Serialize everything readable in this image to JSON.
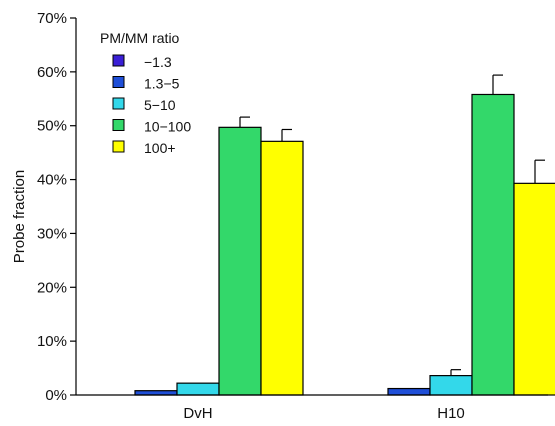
{
  "chart_data": {
    "type": "bar",
    "ylabel": "Probe fraction",
    "ylim": [
      0,
      70
    ],
    "yticks": [
      0,
      10,
      20,
      30,
      40,
      50,
      60,
      70
    ],
    "ytick_labels": [
      "0%",
      "10%",
      "20%",
      "30%",
      "40%",
      "50%",
      "60%",
      "70%"
    ],
    "categories": [
      "DvH",
      "H10"
    ],
    "legend": {
      "title": "PM/MM ratio",
      "placement": "top-left"
    },
    "error_bars": true,
    "grid": false,
    "series": [
      {
        "name": "−1.3",
        "color": "#3a1fd6",
        "values": [
          0.0,
          0.0
        ],
        "errors": [
          0.0,
          0.0
        ]
      },
      {
        "name": "1.3−5",
        "color": "#1f4fd8",
        "values": [
          0.8,
          1.2
        ],
        "errors": [
          0.0,
          0.0
        ]
      },
      {
        "name": "5−10",
        "color": "#33d8ea",
        "values": [
          2.2,
          3.6
        ],
        "errors": [
          0.0,
          1.1
        ]
      },
      {
        "name": "10−100",
        "color": "#33d86a",
        "values": [
          49.7,
          55.8
        ],
        "errors": [
          1.9,
          3.6
        ]
      },
      {
        "name": "100+",
        "color": "#ffff00",
        "values": [
          47.1,
          39.3
        ],
        "errors": [
          2.2,
          4.3
        ]
      }
    ]
  }
}
